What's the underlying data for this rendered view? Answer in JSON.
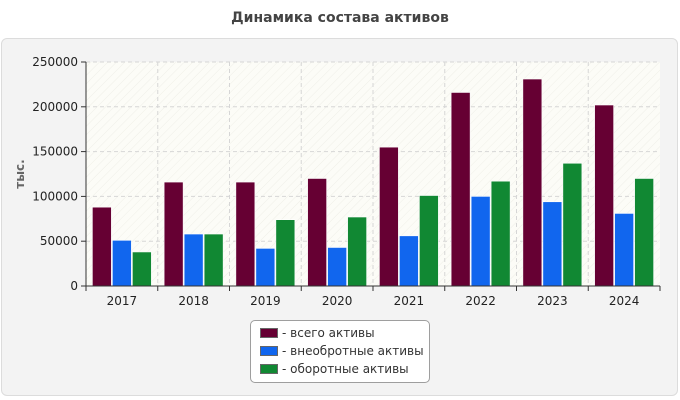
{
  "chart_data": {
    "type": "bar",
    "title": "Динамика состава активов",
    "xlabel": "",
    "ylabel": "тыс.",
    "ylim": [
      0,
      250000
    ],
    "yticks": [
      "0",
      "50000",
      "100000",
      "150000",
      "200000",
      "250000"
    ],
    "ytick_values": [
      0,
      50000,
      100000,
      150000,
      200000,
      250000
    ],
    "categories": [
      "2017",
      "2018",
      "2019",
      "2020",
      "2021",
      "2022",
      "2023",
      "2024"
    ],
    "series": [
      {
        "name": "- всего активы",
        "color": "#660033",
        "values": [
          88000,
          116000,
          116000,
          120000,
          155000,
          216000,
          231000,
          202000
        ]
      },
      {
        "name": "- внеобротные активы",
        "color": "#1166ee",
        "values": [
          51000,
          58000,
          42000,
          43000,
          56000,
          100000,
          94000,
          81000
        ]
      },
      {
        "name": "- оборотные активы",
        "color": "#118833",
        "values": [
          38000,
          58000,
          74000,
          77000,
          101000,
          117000,
          137000,
          120000
        ]
      }
    ],
    "legend_position": "bottom-center",
    "grid": true
  }
}
